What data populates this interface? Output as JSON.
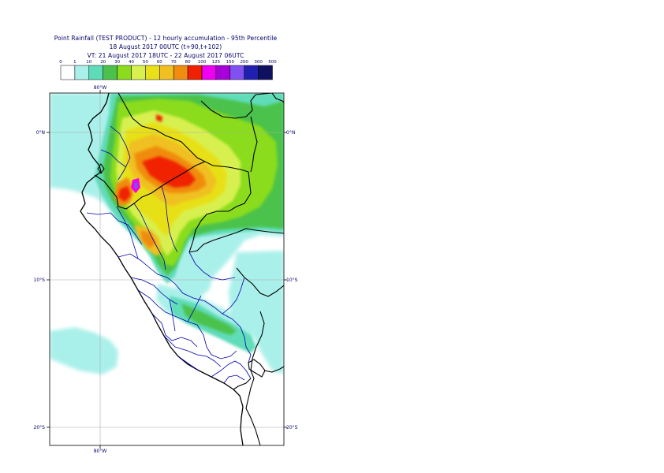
{
  "title": {
    "line1": "Point Rainfall (TEST PRODUCT) - 12 hourly accumulation - 95th Percentile",
    "line2": "18 August 2017 00UTC (t+90,t+102)",
    "line3": "VT: 21 August 2017 18UTC - 22 August 2017 06UTC"
  },
  "legend": {
    "thresholds": [
      "0",
      "1",
      "10",
      "20",
      "30",
      "40",
      "50",
      "60",
      "70",
      "80",
      "100",
      "125",
      "150",
      "200",
      "300",
      "500"
    ],
    "colors": [
      "#ffffff",
      "#aaf0ea",
      "#5edcb8",
      "#4cc24c",
      "#8adc1c",
      "#d8f050",
      "#e8e018",
      "#f0c020",
      "#f08c10",
      "#f02000",
      "#f000f0",
      "#a800d8",
      "#8050f0",
      "#2020b0",
      "#101060"
    ]
  },
  "map": {
    "longitude_labels": [
      "80°W",
      "80°W"
    ],
    "latitude_labels": {
      "left": [
        "0°N",
        "10°S",
        "20°S"
      ],
      "right": [
        "0°N",
        "10°S",
        "20°S"
      ]
    },
    "land_color": "#ffffff",
    "coast_color": "#000000",
    "admin_border_color": "#0000aa"
  }
}
